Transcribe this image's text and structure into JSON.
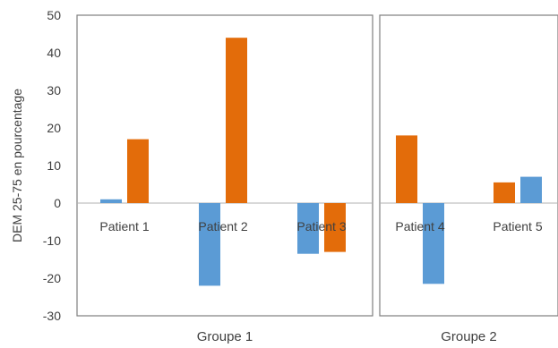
{
  "chart_data": {
    "type": "bar",
    "title": "",
    "xlabel": "",
    "ylabel": "DEM 25-75 en pourcentage",
    "ylim": [
      -30,
      50
    ],
    "yticks": [
      50,
      40,
      30,
      20,
      10,
      0,
      -10,
      -20,
      -30
    ],
    "grid": false,
    "legend": "none",
    "categories": [
      "Patient 1",
      "Patient 2",
      "Patient 3",
      "Patient 4",
      "Patient 5"
    ],
    "groups": [
      {
        "label": "Groupe 1",
        "categories": [
          "Patient 1",
          "Patient 2",
          "Patient 3"
        ]
      },
      {
        "label": "Groupe 2",
        "categories": [
          "Patient 4",
          "Patient 5"
        ]
      }
    ],
    "series": [
      {
        "color": "#5b9bd5",
        "values": [
          1,
          -22,
          -13.5,
          18,
          5.5
        ]
      },
      {
        "color": "#e36c0a",
        "values": [
          17,
          44,
          -13,
          -21.5,
          7
        ]
      }
    ],
    "bar_order": [
      [
        "blue",
        "orange"
      ],
      [
        "blue",
        "orange"
      ],
      [
        "blue",
        "orange"
      ],
      [
        "orange",
        "blue"
      ],
      [
        "orange",
        "blue"
      ]
    ]
  }
}
